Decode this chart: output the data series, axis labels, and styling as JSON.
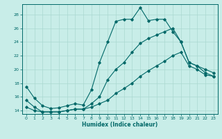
{
  "xlabel": "Humidex (Indice chaleur)",
  "bg_color": "#c8ede8",
  "line_color": "#006868",
  "grid_color": "#aad8d0",
  "xlim": [
    -0.5,
    23.5
  ],
  "ylim": [
    13.5,
    29.5
  ],
  "xticks": [
    0,
    1,
    2,
    3,
    4,
    5,
    6,
    7,
    8,
    9,
    10,
    11,
    12,
    13,
    14,
    15,
    16,
    17,
    18,
    19,
    20,
    21,
    22,
    23
  ],
  "yticks": [
    14,
    16,
    18,
    20,
    22,
    24,
    26,
    28
  ],
  "line1_x": [
    0,
    1,
    2,
    3,
    4,
    5,
    6,
    7,
    8,
    9,
    10,
    11,
    12,
    13,
    14,
    15,
    16,
    17,
    18,
    19,
    20,
    21,
    22,
    23
  ],
  "line1_y": [
    17.5,
    15.8,
    14.7,
    14.3,
    14.4,
    14.7,
    15.0,
    14.8,
    17.0,
    21.0,
    24.0,
    27.0,
    27.3,
    27.3,
    29.0,
    27.1,
    27.3,
    27.3,
    25.5,
    24.0,
    21.0,
    20.5,
    19.5,
    19.0
  ],
  "line2_x": [
    0,
    1,
    2,
    3,
    4,
    5,
    6,
    7,
    8,
    9,
    10,
    11,
    12,
    13,
    14,
    15,
    16,
    17,
    18,
    19,
    20,
    21,
    22,
    23
  ],
  "line2_y": [
    15.5,
    14.5,
    13.8,
    13.8,
    13.8,
    14.0,
    14.2,
    14.2,
    15.0,
    16.0,
    18.5,
    20.0,
    21.0,
    22.5,
    23.8,
    24.5,
    25.0,
    25.5,
    26.0,
    24.0,
    21.0,
    20.5,
    20.0,
    19.5
  ],
  "line3_x": [
    0,
    1,
    2,
    3,
    4,
    5,
    6,
    7,
    8,
    9,
    10,
    11,
    12,
    13,
    14,
    15,
    16,
    17,
    18,
    19,
    20,
    21,
    22,
    23
  ],
  "line3_y": [
    14.5,
    14.0,
    13.8,
    13.8,
    13.8,
    14.0,
    14.2,
    14.2,
    14.5,
    15.0,
    15.5,
    16.5,
    17.2,
    18.0,
    19.0,
    19.8,
    20.5,
    21.2,
    22.0,
    22.5,
    20.5,
    20.0,
    19.2,
    19.0
  ]
}
